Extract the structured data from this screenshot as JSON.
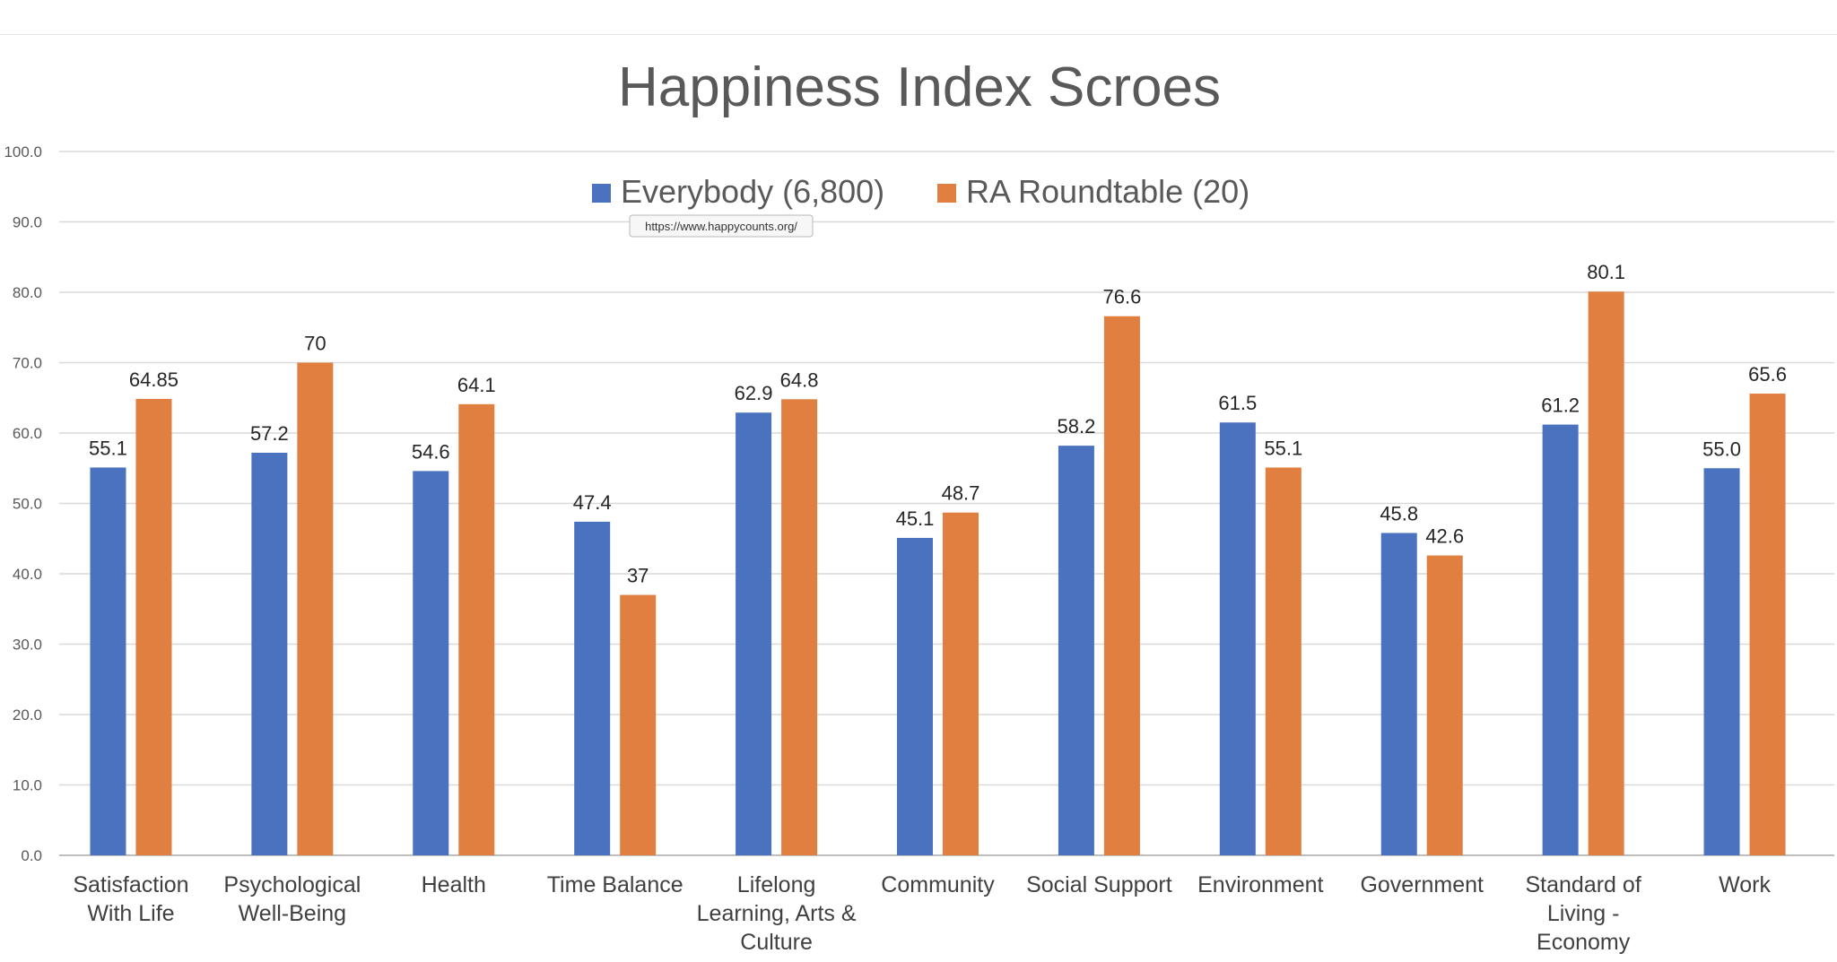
{
  "chart_data": {
    "type": "bar",
    "title": "Happiness Index Scroes",
    "categories": [
      [
        "Satisfaction",
        "With Life"
      ],
      [
        "Psychological",
        "Well-Being"
      ],
      [
        "Health"
      ],
      [
        "Time Balance"
      ],
      [
        "Lifelong",
        "Learning, Arts &",
        "Culture"
      ],
      [
        "Community"
      ],
      [
        "Social Support"
      ],
      [
        "Environment"
      ],
      [
        "Government"
      ],
      [
        "Standard of",
        "Living -",
        "Economy"
      ],
      [
        "Work"
      ]
    ],
    "series": [
      {
        "name": "Everybody (6,800)",
        "color": "#4a72be",
        "values": [
          55.1,
          57.2,
          54.6,
          47.4,
          62.9,
          45.1,
          58.2,
          61.5,
          45.8,
          61.2,
          55.0
        ],
        "labels": [
          "55.1",
          "57.2",
          "54.6",
          "47.4",
          "62.9",
          "45.1",
          "58.2",
          "61.5",
          "45.8",
          "61.2",
          "55.0"
        ]
      },
      {
        "name": "RA Roundtable (20)",
        "color": "#e07f40",
        "values": [
          64.85,
          70,
          64.1,
          37,
          64.8,
          48.7,
          76.6,
          55.1,
          42.6,
          80.1,
          65.6
        ],
        "labels": [
          "64.85",
          "70",
          "64.1",
          "37",
          "64.8",
          "48.7",
          "76.6",
          "55.1",
          "42.6",
          "80.1",
          "65.6"
        ]
      }
    ],
    "ylim": [
      0,
      100
    ],
    "yticks": [
      "0.0",
      "10.0",
      "20.0",
      "30.0",
      "40.0",
      "50.0",
      "60.0",
      "70.0",
      "80.0",
      "90.0",
      "100.0"
    ],
    "grid": true,
    "legend_position": "top-center",
    "tooltip": "https://www.happycounts.org/"
  }
}
